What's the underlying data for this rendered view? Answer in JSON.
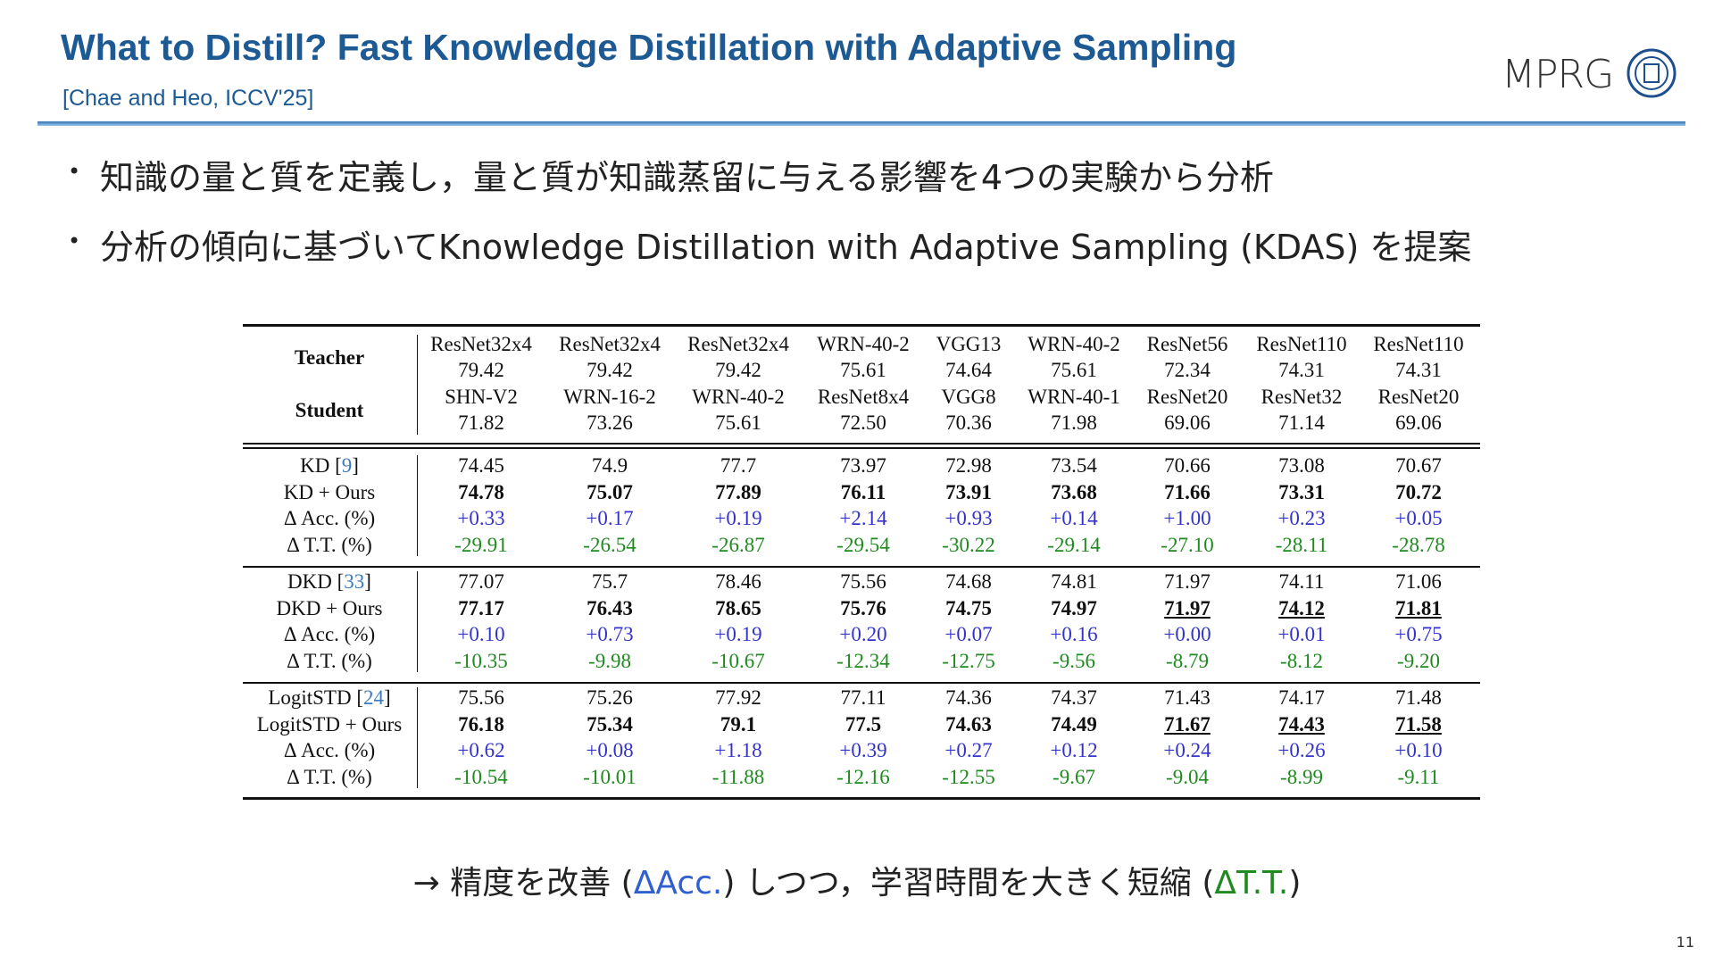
{
  "header": {
    "title": "What to Distill? Fast Knowledge Distillation with Adaptive Sampling",
    "citation": "[Chae and Heo, ICCV'25]",
    "logo": "MPRG"
  },
  "bullets": [
    "知識の量と質を定義し，量と質が知識蒸留に与える影響を4つの実験から分析",
    "分析の傾向に基づいてKnowledge Distillation with Adaptive Sampling (KDAS) を提案"
  ],
  "table": {
    "row_labels": [
      "Teacher",
      "Student"
    ],
    "header_rows": [
      [
        "ResNet32x4",
        "ResNet32x4",
        "ResNet32x4",
        "WRN-40-2",
        "VGG13",
        "WRN-40-2",
        "ResNet56",
        "ResNet110",
        "ResNet110"
      ],
      [
        "79.42",
        "79.42",
        "79.42",
        "75.61",
        "74.64",
        "75.61",
        "72.34",
        "74.31",
        "74.31"
      ],
      [
        "SHN-V2",
        "WRN-16-2",
        "WRN-40-2",
        "ResNet8x4",
        "VGG8",
        "WRN-40-1",
        "ResNet20",
        "ResNet32",
        "ResNet20"
      ],
      [
        "71.82",
        "73.26",
        "75.61",
        "72.50",
        "70.36",
        "71.98",
        "69.06",
        "71.14",
        "69.06"
      ]
    ],
    "groups": [
      {
        "rows": [
          {
            "label": [
              "KD [",
              "9",
              "]"
            ],
            "cells": [
              "74.45",
              "74.9",
              "77.7",
              "73.97",
              "72.98",
              "73.54",
              "70.66",
              "73.08",
              "70.67"
            ]
          },
          {
            "label": [
              "KD + Ours"
            ],
            "cells": [
              "74.78",
              "75.07",
              "77.89",
              "76.11",
              "73.91",
              "73.68",
              "71.66",
              "73.31",
              "70.72"
            ],
            "bold": true,
            "underline": []
          },
          {
            "label": [
              "Δ Acc. (%)"
            ],
            "cells": [
              "+0.33",
              "+0.17",
              "+0.19",
              "+2.14",
              "+0.93",
              "+0.14",
              "+1.00",
              "+0.23",
              "+0.05"
            ],
            "color": "#3333cc"
          },
          {
            "label": [
              "Δ T.T. (%)"
            ],
            "cells": [
              "-29.91",
              "-26.54",
              "-26.87",
              "-29.54",
              "-30.22",
              "-29.14",
              "-27.10",
              "-28.11",
              "-28.78"
            ],
            "color": "#1f8a1f"
          }
        ]
      },
      {
        "rows": [
          {
            "label": [
              "DKD [",
              "33",
              "]"
            ],
            "cells": [
              "77.07",
              "75.7",
              "78.46",
              "75.56",
              "74.68",
              "74.81",
              "71.97",
              "74.11",
              "71.06"
            ]
          },
          {
            "label": [
              "DKD + Ours"
            ],
            "cells": [
              "77.17",
              "76.43",
              "78.65",
              "75.76",
              "74.75",
              "74.97",
              "71.97",
              "74.12",
              "71.81"
            ],
            "bold": true,
            "underline": [
              6,
              7,
              8
            ]
          },
          {
            "label": [
              "Δ Acc. (%)"
            ],
            "cells": [
              "+0.10",
              "+0.73",
              "+0.19",
              "+0.20",
              "+0.07",
              "+0.16",
              "+0.00",
              "+0.01",
              "+0.75"
            ],
            "color": "#3333cc"
          },
          {
            "label": [
              "Δ T.T. (%)"
            ],
            "cells": [
              "-10.35",
              "-9.98",
              "-10.67",
              "-12.34",
              "-12.75",
              "-9.56",
              "-8.79",
              "-8.12",
              "-9.20"
            ],
            "color": "#1f8a1f"
          }
        ]
      },
      {
        "rows": [
          {
            "label": [
              "LogitSTD [",
              "24",
              "]"
            ],
            "cells": [
              "75.56",
              "75.26",
              "77.92",
              "77.11",
              "74.36",
              "74.37",
              "71.43",
              "74.17",
              "71.48"
            ]
          },
          {
            "label": [
              "LogitSTD + Ours"
            ],
            "cells": [
              "76.18",
              "75.34",
              "79.1",
              "77.5",
              "74.63",
              "74.49",
              "71.67",
              "74.43",
              "71.58"
            ],
            "bold": true,
            "underline": [
              6,
              7,
              8
            ]
          },
          {
            "label": [
              "Δ Acc. (%)"
            ],
            "cells": [
              "+0.62",
              "+0.08",
              "+1.18",
              "+0.39",
              "+0.27",
              "+0.12",
              "+0.24",
              "+0.26",
              "+0.10"
            ],
            "color": "#3333cc"
          },
          {
            "label": [
              "Δ T.T. (%)"
            ],
            "cells": [
              "-10.54",
              "-10.01",
              "-11.88",
              "-12.16",
              "-12.55",
              "-9.67",
              "-9.04",
              "-8.99",
              "-9.11"
            ],
            "color": "#1f8a1f"
          }
        ]
      }
    ]
  },
  "conclusion": [
    {
      "text": "→ 精度を改善 ("
    },
    {
      "text": "ΔAcc.",
      "color": "#2f5fd0"
    },
    {
      "text": ") しつつ，学習時間を大きく短縮 ("
    },
    {
      "text": "ΔT.T.",
      "color": "#1f8a1f"
    },
    {
      "text": ")"
    }
  ],
  "page_number": "11"
}
